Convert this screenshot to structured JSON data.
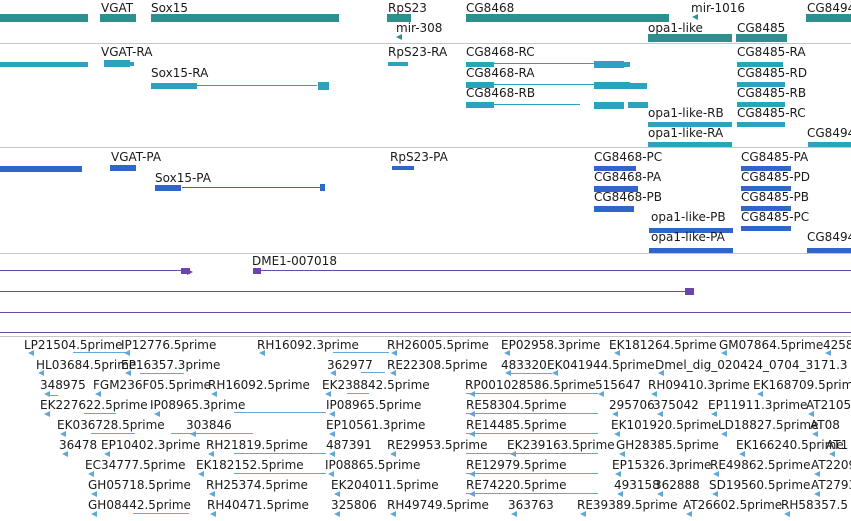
{
  "colors": {
    "gene": "#2f8f8f",
    "transcript": "#2ba3bf",
    "protein": "#2f66c9",
    "contig": "#6b45a8",
    "est": "#5fa8d8"
  },
  "gene_track": {
    "labels": [
      "VGAT",
      "Sox15",
      "RpS23",
      "mir-308",
      "CG8468",
      "mir-1016",
      "opa1-like",
      "CG8485",
      "CG8494"
    ]
  },
  "transcript_track": {
    "labels": [
      "VGAT-RA",
      "Sox15-RA",
      "RpS23-RA",
      "CG8468-RC",
      "CG8468-RA",
      "CG8468-RB",
      "CG8485-RA",
      "CG8485-RD",
      "CG8485-RB",
      "CG8485-RC",
      "opa1-like-RB",
      "opa1-like-RA",
      "CG8494"
    ]
  },
  "protein_track": {
    "labels": [
      "VGAT-PA",
      "Sox15-PA",
      "RpS23-PA",
      "CG8468-PC",
      "CG8468-PA",
      "CG8468-PB",
      "CG8485-PA",
      "CG8485-PD",
      "CG8485-PB",
      "CG8485-PC",
      "opa1-like-PB",
      "opa1-like-PA",
      "CG8494"
    ]
  },
  "contig_track": {
    "labels": [
      "DME1-007018"
    ]
  },
  "est_track": {
    "labels": [
      "LP21504.5prime",
      "IP12776.5prime",
      "RH16092.3prime",
      "RH26005.5prime",
      "EP02958.3prime",
      "EK181264.5prime",
      "GM07864.5prime",
      "4258",
      "HL03684.5prime",
      "EP16357.3prime",
      "362977",
      "RE22308.5prime",
      "483320",
      "EK041944.5prime",
      "Dmel_dig_020424_0704_3171.3",
      "348975",
      "FGM236F05.5prime",
      "RH16092.5prime",
      "EK238842.5prime",
      "RP001028586.5prime",
      "515647",
      "RH09410.3prime",
      "EK168709.5prime",
      "EK227622.5prime",
      "IP08965.3prime",
      "IP08965.5prime",
      "RE58304.5prime",
      "295706",
      "375042",
      "EP11911.3prime",
      "AT2105",
      "EK036728.5prime",
      "303846",
      "EP10561.3prime",
      "RE14485.5prime",
      "EK101920.5prime",
      "LD18827.5prime",
      "AT08",
      "36478",
      "EP10402.3prime",
      "RH21819.5prime",
      "487391",
      "RE29953.5prime",
      "EK239163.5prime",
      "GH28385.5prime",
      "EK166240.5prime",
      "AT1",
      "EC34777.5prime",
      "EK182152.5prime",
      "IP08865.5prime",
      "RE12979.5prime",
      "EP15326.3prime",
      "RE49862.5prime",
      "AT2209",
      "GH05718.5prime",
      "RH25374.5prime",
      "EK204011.5prime",
      "RE74220.5prime",
      "493158",
      "362888",
      "SD19560.5prime",
      "AT2793",
      "GH08442.5prime",
      "RH40471.5prime",
      "325806",
      "RH49749.5prime",
      "363763",
      "RE39389.5prime",
      "AT26602.5prime",
      "RH58357.5"
    ]
  }
}
